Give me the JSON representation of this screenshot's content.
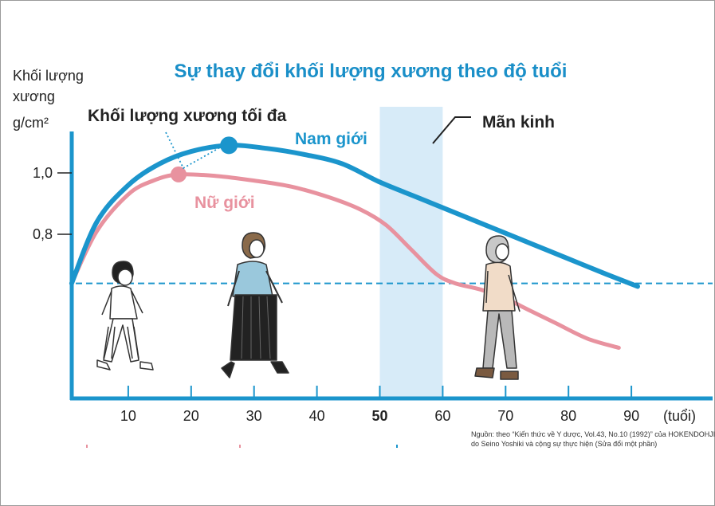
{
  "chart_data": {
    "type": "line",
    "title": "Sự thay đổi khối lượng xương theo độ tuổi",
    "ylabel_lines": [
      "Khối lượng",
      "xương",
      "g/cm²"
    ],
    "xlabel": "(tuổi)",
    "x_ticks": [
      "10",
      "20",
      "30",
      "40",
      "50",
      "60",
      "70",
      "80",
      "90"
    ],
    "x_tick_values": [
      10,
      20,
      30,
      40,
      50,
      60,
      70,
      80,
      90
    ],
    "highlight_tick": "50",
    "y_ticks": [
      "1,0",
      "0,8"
    ],
    "y_tick_values": [
      1.0,
      0.8
    ],
    "xlim": [
      0,
      96
    ],
    "ylim": [
      0.28,
      1.22
    ],
    "series": [
      {
        "name": "Nam giới",
        "color": "#1b95cc",
        "x": [
          1,
          5,
          10,
          15,
          20,
          26,
          32,
          38,
          44,
          50,
          56,
          62,
          68,
          74,
          80,
          86,
          91
        ],
        "values": [
          0.64,
          0.84,
          0.96,
          1.03,
          1.07,
          1.09,
          1.08,
          1.06,
          1.03,
          0.97,
          0.92,
          0.87,
          0.82,
          0.77,
          0.72,
          0.67,
          0.63
        ]
      },
      {
        "name": "Nữ giới",
        "color": "#e8929f",
        "x": [
          1,
          5,
          10,
          14,
          18,
          24,
          30,
          36,
          42,
          47,
          51,
          55,
          59,
          62,
          66,
          70,
          74,
          78,
          83,
          88
        ],
        "values": [
          0.64,
          0.81,
          0.93,
          0.975,
          0.995,
          0.99,
          0.975,
          0.955,
          0.92,
          0.88,
          0.83,
          0.75,
          0.67,
          0.64,
          0.62,
          0.59,
          0.55,
          0.51,
          0.46,
          0.43
        ]
      }
    ],
    "peak_markers": [
      {
        "series": "Nam giới",
        "x": 26,
        "y": 1.09
      },
      {
        "series": "Nữ giới",
        "x": 18,
        "y": 0.995
      }
    ],
    "reference_line": {
      "y": 0.64,
      "style": "dashed"
    },
    "shaded_region": {
      "x_from": 50,
      "x_to": 60,
      "label": "Mãn kinh"
    },
    "annotations": {
      "peak_label": "Khối lượng xương tối đa",
      "male_label": "Nam giới",
      "female_label": "Nữ giới",
      "menopause_label": "Mãn kinh"
    },
    "source_lines": [
      "Nguồn: theo “Kiến thức về Y dược, Vol.43, No.10 (1992)” của HOKENDOHJINSHA Ir",
      "do Seino Yoshiki và cộng sự thực hiện (Sửa đổi một phần)"
    ],
    "colors": {
      "axis": "#1b95cc",
      "male": "#1b95cc",
      "female": "#e8929f",
      "highlight_tick": "#e0457b",
      "menopause_band": "#d7ebf8",
      "reference_line": "#1b95cc"
    },
    "illustrations": [
      "boy-walking",
      "young-woman-walking",
      "elderly-woman-walking"
    ]
  }
}
